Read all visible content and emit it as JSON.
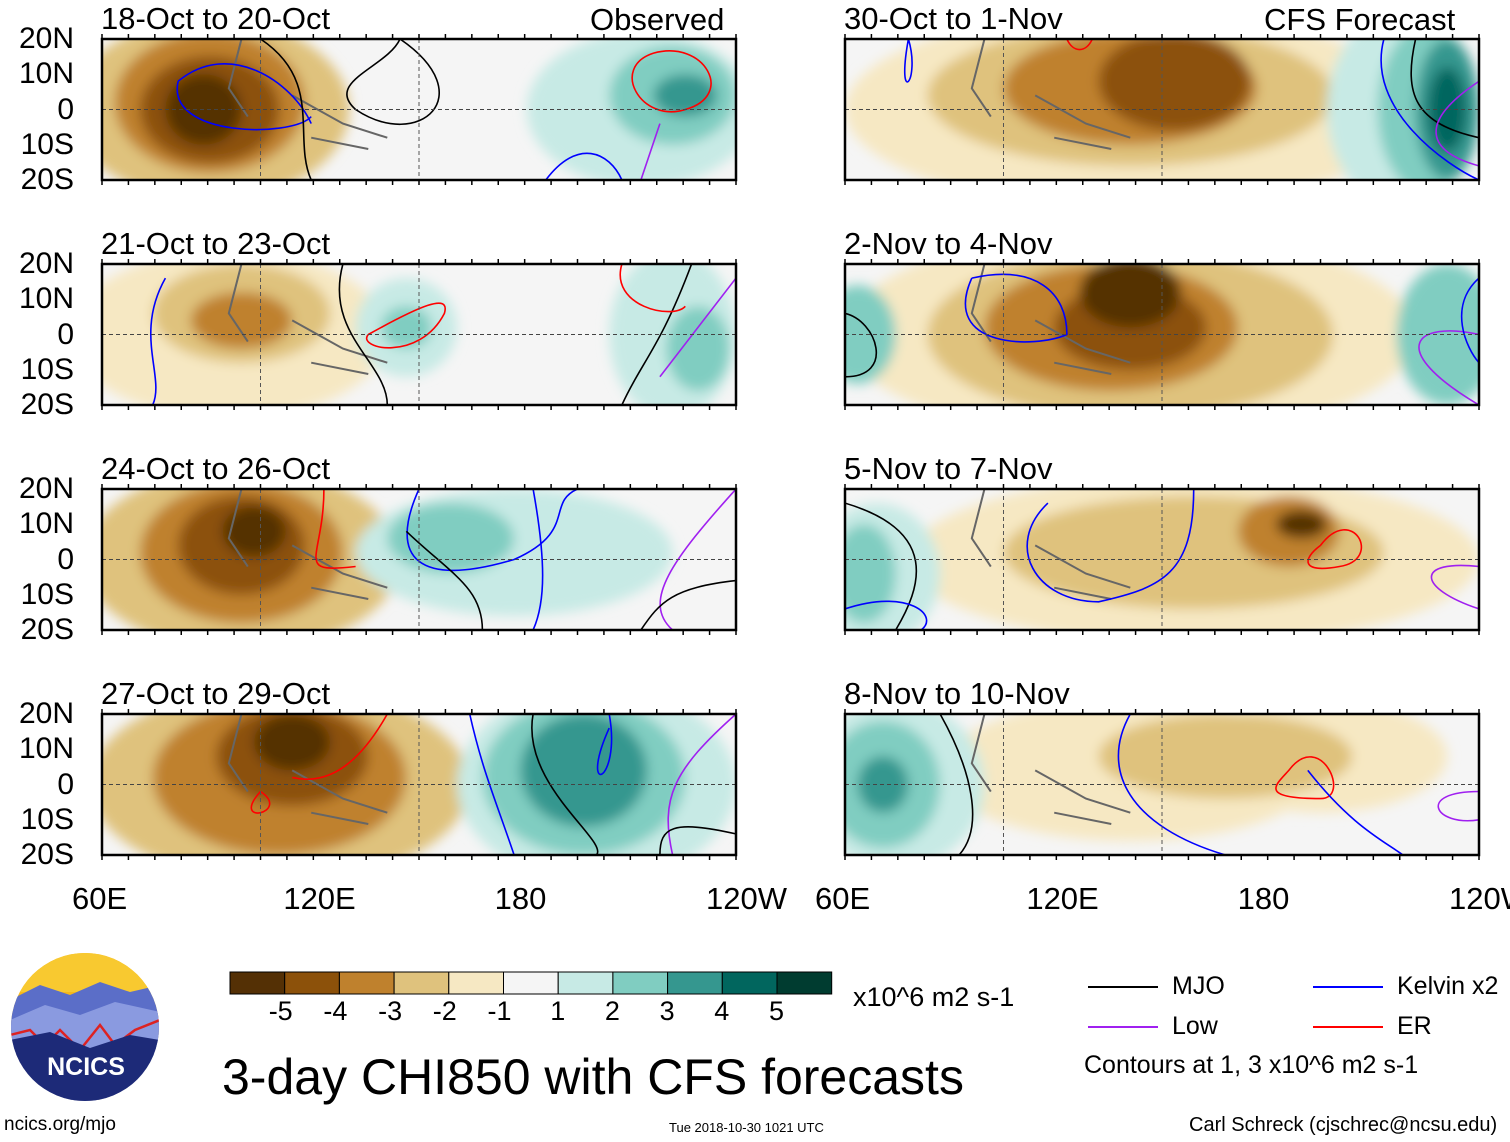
{
  "figure": {
    "title": "3-day CHI850 with CFS forecasts",
    "units": "x10^6 m2 s-1",
    "contour_note": "Contours at 1, 3 x10^6 m2 s-1",
    "source_link": "ncics.org/mjo",
    "timestamp": "Tue 2018-10-30 1021 UTC",
    "author": "Carl Schreck (cjschrec@ncsu.edu)",
    "logo_text": "NCICS"
  },
  "columns": {
    "left_label": "Observed",
    "right_label": "CFS Forecast"
  },
  "lat_labels": [
    "20N",
    "10N",
    "0",
    "10S",
    "20S"
  ],
  "lon_labels": [
    "60E",
    "120E",
    "180",
    "120W"
  ],
  "panels_left": [
    {
      "title": "18-Oct to 20-Oct"
    },
    {
      "title": "21-Oct to 23-Oct"
    },
    {
      "title": "24-Oct to 26-Oct"
    },
    {
      "title": "27-Oct to 29-Oct"
    }
  ],
  "panels_right": [
    {
      "title": "30-Oct to 1-Nov"
    },
    {
      "title": "2-Nov to 4-Nov"
    },
    {
      "title": "5-Nov to 7-Nov"
    },
    {
      "title": "8-Nov to 10-Nov"
    }
  ],
  "colorbar": {
    "colors": [
      "#543005",
      "#8c510a",
      "#bf812d",
      "#dfc27d",
      "#f6e8c3",
      "#f5f5f5",
      "#c7eae5",
      "#80cdc1",
      "#35978f",
      "#01665e",
      "#003c30"
    ],
    "ticks": [
      "-5",
      "-4",
      "-3",
      "-2",
      "-1",
      "1",
      "2",
      "3",
      "4",
      "5"
    ]
  },
  "legend": [
    {
      "label": "MJO",
      "color": "#000000"
    },
    {
      "label": "Kelvin x2",
      "color": "#0000ff"
    },
    {
      "label": "Low",
      "color": "#a020f0"
    },
    {
      "label": "ER",
      "color": "#ff0000"
    }
  ]
}
